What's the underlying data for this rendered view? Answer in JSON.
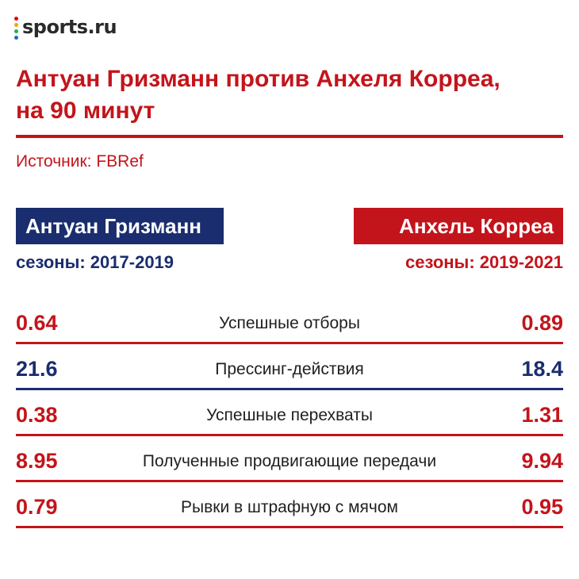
{
  "brand": {
    "logo_text": "sports.ru",
    "dot_colors": [
      "#e2001a",
      "#f7a600",
      "#2fa84f",
      "#1d6fb8"
    ]
  },
  "title_lines": [
    "Антуан Гризманн против Анхеля Корреа,",
    "на 90 минут"
  ],
  "source": "Источник: FBRef",
  "colors": {
    "red": "#c4141b",
    "blue": "#1a2d6e",
    "gray_text": "#1f1f1f"
  },
  "players": {
    "left": {
      "name": "Антуан Гризманн",
      "seasons": "сезоны: 2017-2019",
      "color": "#1a2d6e"
    },
    "right": {
      "name": "Анхель Корреа",
      "seasons": "сезоны: 2019-2021",
      "color": "#c4141b"
    }
  },
  "chart_data": {
    "type": "table",
    "title": "Антуан Гризманн против Анхеля Корреа, на 90 минут",
    "columns": [
      "Антуан Гризманн",
      "",
      "Анхель Корреа"
    ],
    "rows": [
      {
        "left": "0.64",
        "label": "Успешные отборы",
        "right": "0.89",
        "winner": "right"
      },
      {
        "left": "21.6",
        "label": "Прессинг-действия",
        "right": "18.4",
        "winner": "left"
      },
      {
        "left": "0.38",
        "label": "Успешные перехваты",
        "right": "1.31",
        "winner": "right"
      },
      {
        "left": "8.95",
        "label": "Полученные продвигающие передачи",
        "right": "9.94",
        "winner": "right"
      },
      {
        "left": "0.79",
        "label": "Рывки в штрафную с мячом",
        "right": "0.95",
        "winner": "right"
      }
    ]
  }
}
